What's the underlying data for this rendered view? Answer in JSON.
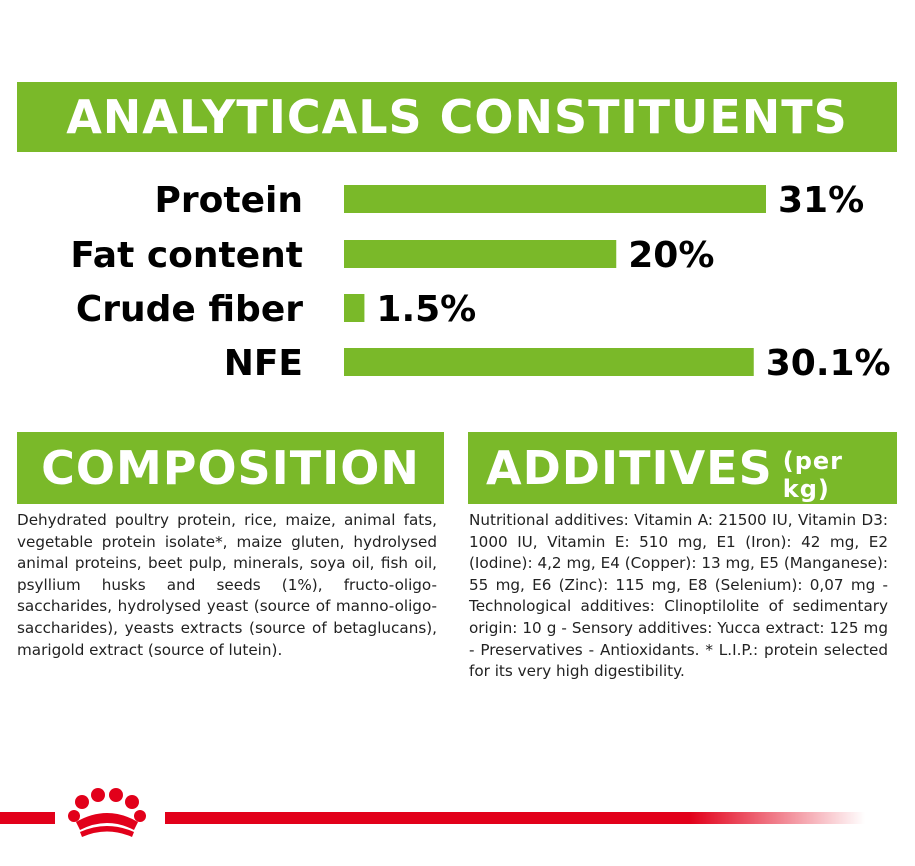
{
  "analytics": {
    "title": "ANALYTICALS CONSTITUENTS"
  },
  "chart_data": {
    "type": "bar",
    "orientation": "horizontal",
    "categories": [
      "Protein",
      "Fat content",
      "Crude fiber",
      "NFE"
    ],
    "values": [
      31,
      20,
      1.5,
      30.1
    ],
    "value_labels": [
      "31%",
      "20%",
      "1.5%",
      "30.1%"
    ],
    "unit": "%",
    "xlim": [
      0,
      31
    ],
    "grid": false,
    "legend": "none",
    "bar_color": "#7ab929"
  },
  "composition": {
    "title": "COMPOSITION",
    "text": "Dehydrated poultry protein, rice, maize, animal fats, vegetable protein isolate*, maize gluten, hydrolysed animal proteins, beet pulp, minerals, soya oil, fish oil, psyllium husks and seeds (1%), fructo-oligo-saccharides, hydrolysed yeast (source of manno-oligo-saccharides), yeasts extracts (source of betaglucans), marigold extract (source of lutein)."
  },
  "additives": {
    "title": "ADDITIVES",
    "subtitle": "(per kg)",
    "text": "Nutritional additives: Vitamin A: 21500 IU, Vitamin D3: 1000 IU, Vitamin E: 510 mg, E1 (Iron): 42 mg, E2 (Iodine): 4,2 mg, E4 (Copper): 13 mg, E5 (Manganese): 55 mg, E6 (Zinc): 115 mg, E8 (Selenium): 0,07 mg - Technological additives: Clinoptilolite of sedimentary origin: 10 g - Sensory additives: Yucca extract: 125 mg - Preservatives - Antioxidants. * L.I.P.: protein selected for its very high digestibility."
  },
  "footer": {
    "logo": "royal-crown-icon",
    "accent_color": "#e2001a"
  }
}
